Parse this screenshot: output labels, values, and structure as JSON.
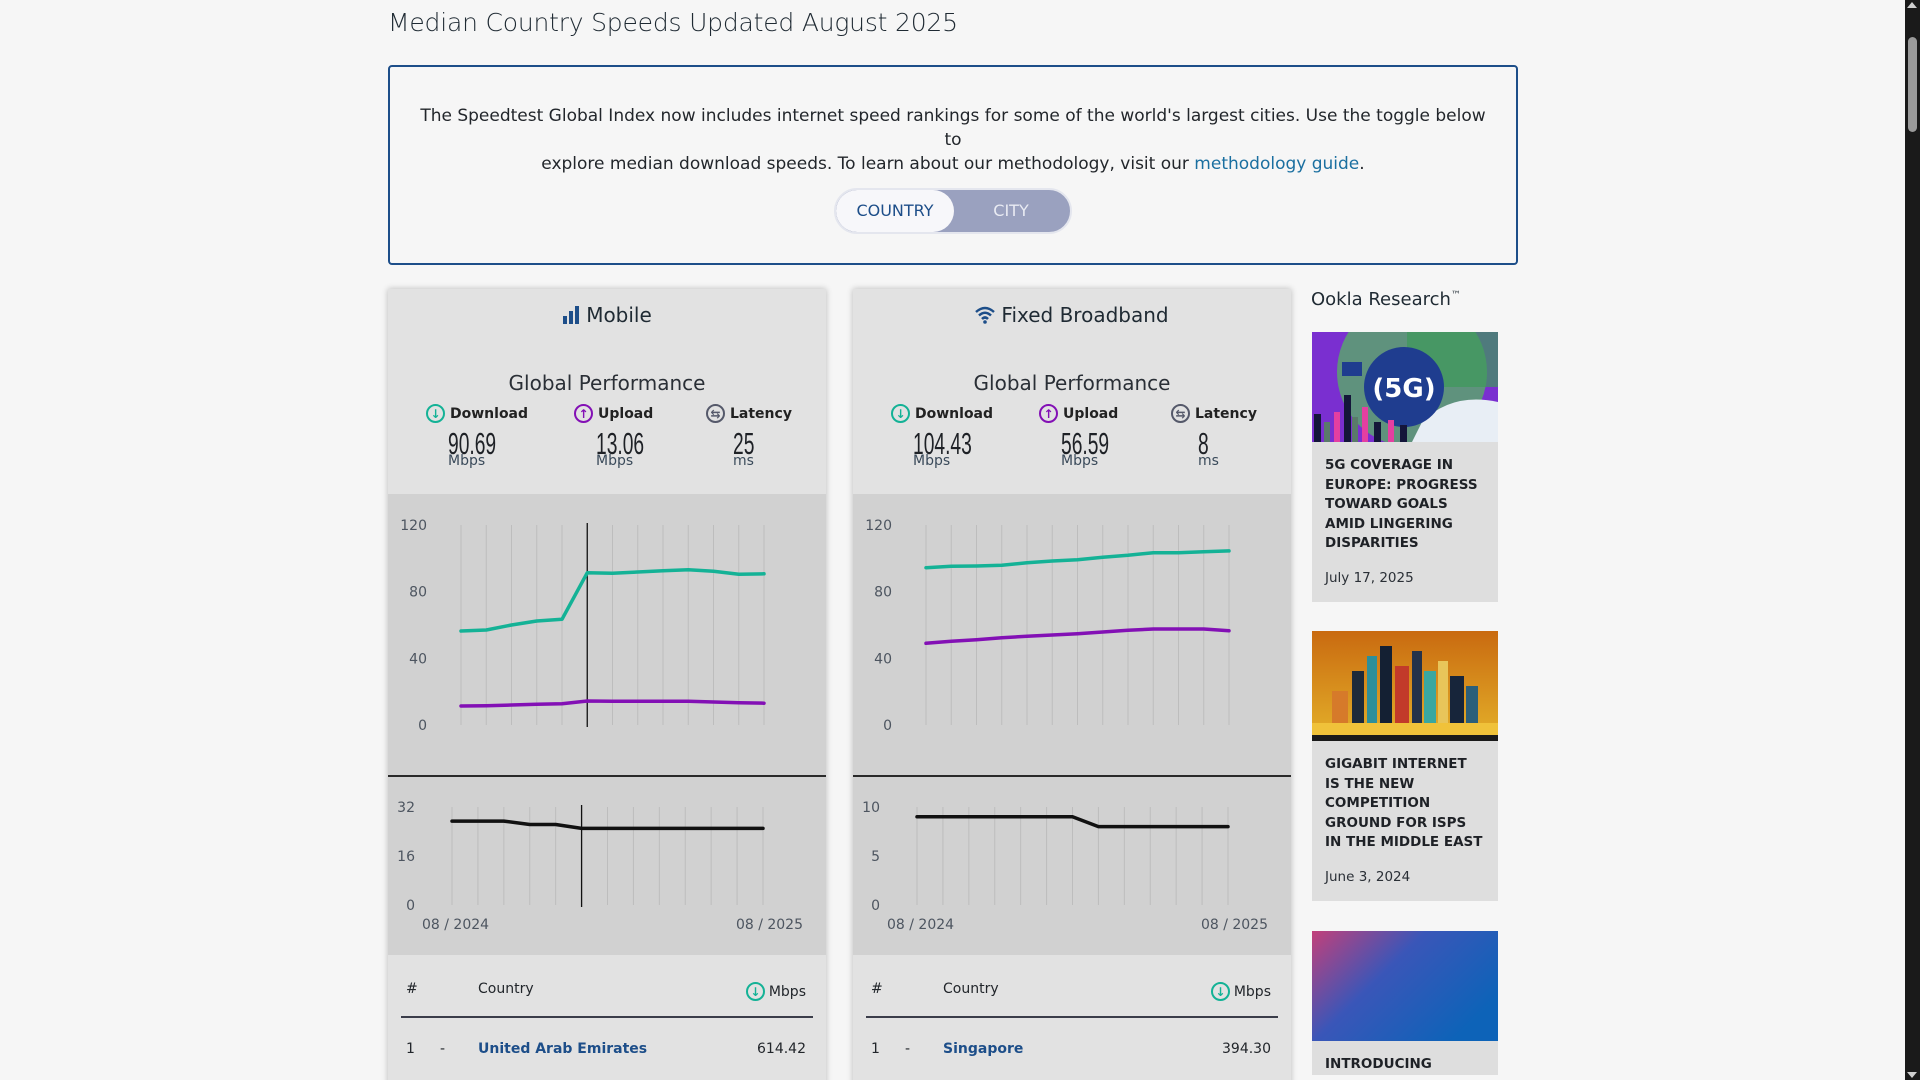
{
  "page": {
    "title": "Median Country Speeds Updated August 2025"
  },
  "info": {
    "text_line1": "The Speedtest Global Index now includes internet speed rankings for some of the world's largest cities. Use the toggle below to",
    "text_line2_prefix": "explore median download speeds. To learn about our methodology, visit our ",
    "link_text": "methodology guide",
    "text_line2_suffix": ".",
    "toggle": {
      "active": "COUNTRY",
      "inactive": "CITY"
    }
  },
  "colors": {
    "download": "#14b296",
    "upload": "#8310b5",
    "latency": "#55596a",
    "accent": "#1d4e89"
  },
  "cards": [
    {
      "id": "mobile",
      "title": "Mobile",
      "icon": "signal-bars-icon",
      "subtitle": "Global Performance",
      "metrics": [
        {
          "label": "Download",
          "value": "90.69",
          "unit": "Mbps",
          "icon": "download-icon"
        },
        {
          "label": "Upload",
          "value": "13.06",
          "unit": "Mbps",
          "icon": "upload-icon"
        },
        {
          "label": "Latency",
          "value": "25",
          "unit": "ms",
          "icon": "latency-icon"
        }
      ],
      "table": {
        "headers": {
          "rank": "#",
          "country": "Country",
          "value": "Mbps"
        },
        "rows": [
          {
            "rank": "1",
            "change": "-",
            "country": "United Arab Emirates",
            "value": "614.42"
          }
        ]
      }
    },
    {
      "id": "fixed",
      "title": "Fixed Broadband",
      "icon": "wifi-icon",
      "subtitle": "Global Performance",
      "metrics": [
        {
          "label": "Download",
          "value": "104.43",
          "unit": "Mbps",
          "icon": "download-icon"
        },
        {
          "label": "Upload",
          "value": "56.59",
          "unit": "Mbps",
          "icon": "upload-icon"
        },
        {
          "label": "Latency",
          "value": "8",
          "unit": "ms",
          "icon": "latency-icon"
        }
      ],
      "table": {
        "headers": {
          "rank": "#",
          "country": "Country",
          "value": "Mbps"
        },
        "rows": [
          {
            "rank": "1",
            "change": "-",
            "country": "Singapore",
            "value": "394.30"
          }
        ]
      }
    }
  ],
  "chart_data": [
    {
      "type": "line",
      "title": "Mobile speed trend",
      "x": [
        "08/2024",
        "09/2024",
        "10/2024",
        "11/2024",
        "12/2024",
        "01/2025",
        "02/2025",
        "03/2025",
        "04/2025",
        "05/2025",
        "06/2025",
        "07/2025",
        "08/2025"
      ],
      "ylim": [
        0,
        120
      ],
      "yticks": [
        "120",
        "80",
        "40",
        "0"
      ],
      "grid": "vertical",
      "highlight_index": 5,
      "series": [
        {
          "name": "Download",
          "values": [
            56.4,
            57.0,
            60.0,
            62.4,
            63.4,
            91.4,
            91.0,
            91.8,
            92.6,
            93.2,
            92.2,
            90.4,
            90.69
          ]
        },
        {
          "name": "Upload",
          "values": [
            11.4,
            11.6,
            12.0,
            12.4,
            12.8,
            14.4,
            14.2,
            14.2,
            14.2,
            14.2,
            13.8,
            13.4,
            13.06
          ]
        }
      ]
    },
    {
      "type": "line",
      "title": "Mobile latency trend",
      "x": [
        "08/2024",
        "09/2024",
        "10/2024",
        "11/2024",
        "12/2024",
        "01/2025",
        "02/2025",
        "03/2025",
        "04/2025",
        "05/2025",
        "06/2025",
        "07/2025",
        "08/2025"
      ],
      "xtick_labels": [
        "08 / 2024",
        "08 / 2025"
      ],
      "ylim": [
        0,
        32
      ],
      "yticks": [
        "32",
        "16",
        "0"
      ],
      "highlight_index": 5,
      "series": [
        {
          "name": "Latency",
          "values": [
            27.4,
            27.4,
            27.4,
            26.3,
            26.3,
            25,
            25,
            25,
            25,
            25,
            25,
            25,
            25
          ]
        }
      ]
    },
    {
      "type": "line",
      "title": "Fixed Broadband speed trend",
      "x": [
        "08/2024",
        "09/2024",
        "10/2024",
        "11/2024",
        "12/2024",
        "01/2025",
        "02/2025",
        "03/2025",
        "04/2025",
        "05/2025",
        "06/2025",
        "07/2025",
        "08/2025"
      ],
      "ylim": [
        0,
        120
      ],
      "yticks": [
        "120",
        "80",
        "40",
        "0"
      ],
      "grid": "vertical",
      "series": [
        {
          "name": "Download",
          "values": [
            94.4,
            95.2,
            95.4,
            95.8,
            97.4,
            98.4,
            99.2,
            100.6,
            101.8,
            103.4,
            103.4,
            104.0,
            104.43
          ]
        },
        {
          "name": "Upload",
          "values": [
            49.0,
            50.2,
            51.2,
            52.4,
            53.2,
            54.0,
            54.8,
            55.8,
            56.8,
            57.6,
            57.6,
            57.6,
            56.59
          ]
        }
      ]
    },
    {
      "type": "line",
      "title": "Fixed Broadband latency trend",
      "x": [
        "08/2024",
        "09/2024",
        "10/2024",
        "11/2024",
        "12/2024",
        "01/2025",
        "02/2025",
        "03/2025",
        "04/2025",
        "05/2025",
        "06/2025",
        "07/2025",
        "08/2025"
      ],
      "xtick_labels": [
        "08 / 2024",
        "08 / 2025"
      ],
      "ylim": [
        0,
        10
      ],
      "yticks": [
        "10",
        "5",
        "0"
      ],
      "series": [
        {
          "name": "Latency",
          "values": [
            9,
            9,
            9,
            9,
            9,
            9,
            9,
            8,
            8,
            8,
            8,
            8,
            8
          ]
        }
      ]
    }
  ],
  "research": {
    "title": "Ookla Research",
    "trademark": "™",
    "articles": [
      {
        "title": "5G Coverage in Europe: Progress Toward Goals Amid Lingering Disparities",
        "date": "July 17, 2025",
        "image": "5g-europe-image"
      },
      {
        "title": "Gigabit Internet is the New Competition Ground for ISPs in the Middle East",
        "date": "June 3, 2024",
        "image": "city-skyline-image"
      },
      {
        "title": "Introducing",
        "date": "",
        "image": "gradient-texture-image"
      }
    ]
  }
}
